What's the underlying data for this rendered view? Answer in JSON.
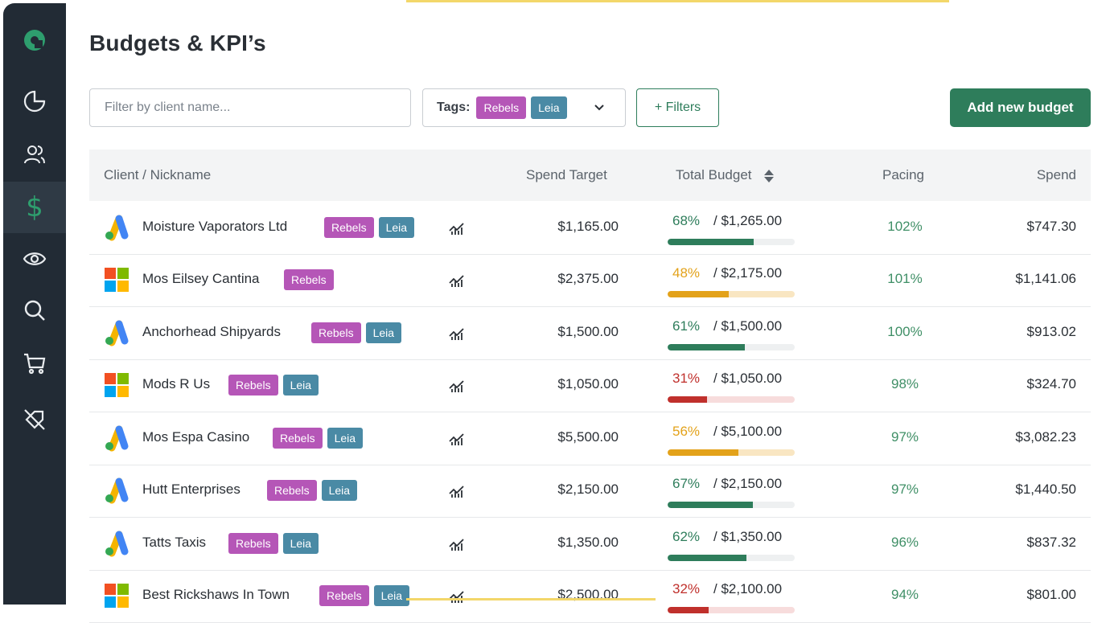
{
  "page": {
    "title": "Budgets & KPI’s"
  },
  "toolbar": {
    "search_placeholder": "Filter by client name...",
    "tags_label": "Tags:",
    "tags_selected": [
      "Rebels",
      "Leia"
    ],
    "filters_label": "+ Filters",
    "add_label": "Add new budget"
  },
  "sidebar": {
    "items": [
      {
        "icon": "logo-icon"
      },
      {
        "icon": "pie-chart-icon"
      },
      {
        "icon": "users-icon"
      },
      {
        "icon": "dollar-icon",
        "glyph": "$",
        "active": true
      },
      {
        "icon": "eye-icon"
      },
      {
        "icon": "search-icon"
      },
      {
        "icon": "cart-icon"
      },
      {
        "icon": "tag-off-icon"
      }
    ]
  },
  "table": {
    "headers": {
      "client": "Client / Nickname",
      "target": "Spend Target",
      "total": "Total Budget",
      "pacing": "Pacing",
      "spend": "Spend"
    },
    "rows": [
      {
        "logo": "google-ads",
        "name": "Moisture Vaporators  Ltd",
        "tags": [
          "Rebels",
          "Leia"
        ],
        "target": "$1,165.00",
        "pct": "68%",
        "pct_value": 68,
        "status": "green",
        "total": "/ $1,265.00",
        "pacing": "102%",
        "spend": "$747.30"
      },
      {
        "logo": "microsoft",
        "name": "Mos Eilsey Cantina",
        "tags": [
          "Rebels"
        ],
        "target": "$2,375.00",
        "pct": "48%",
        "pct_value": 48,
        "status": "orange",
        "total": "/ $2,175.00",
        "pacing": "101%",
        "spend": "$1,141.06"
      },
      {
        "logo": "google-ads",
        "name": "Anchorhead Shipyards",
        "tags": [
          "Rebels",
          "Leia"
        ],
        "target": "$1,500.00",
        "pct": "61%",
        "pct_value": 61,
        "status": "green",
        "total": "/ $1,500.00",
        "pacing": "100%",
        "spend": "$913.02"
      },
      {
        "logo": "microsoft",
        "name": "Mods R Us",
        "tags": [
          "Rebels",
          "Leia"
        ],
        "target": "$1,050.00",
        "pct": "31%",
        "pct_value": 31,
        "status": "red",
        "total": "/ $1,050.00",
        "pacing": "98%",
        "spend": "$324.70"
      },
      {
        "logo": "google-ads",
        "name": "Mos Espa Casino",
        "tags": [
          "Rebels",
          "Leia"
        ],
        "target": "$5,500.00",
        "pct": "56%",
        "pct_value": 56,
        "status": "orange",
        "total": "/ $5,100.00",
        "pacing": "97%",
        "spend": "$3,082.23"
      },
      {
        "logo": "google-ads",
        "name": "Hutt Enterprises",
        "tags": [
          "Rebels",
          "Leia"
        ],
        "target": "$2,150.00",
        "pct": "67%",
        "pct_value": 67,
        "status": "green",
        "total": "/ $2,150.00",
        "pacing": "97%",
        "spend": "$1,440.50"
      },
      {
        "logo": "google-ads",
        "name": "Tatts Taxis",
        "tags": [
          "Rebels",
          "Leia"
        ],
        "target": "$1,350.00",
        "pct": "62%",
        "pct_value": 62,
        "status": "green",
        "total": "/ $1,350.00",
        "pacing": "96%",
        "spend": "$837.32"
      },
      {
        "logo": "microsoft",
        "name": "Best Rickshaws In Town",
        "tags": [
          "Rebels",
          "Leia"
        ],
        "target": "$2,500.00",
        "pct": "32%",
        "pct_value": 32,
        "status": "red",
        "total": "/ $2,100.00",
        "pacing": "94%",
        "spend": "$801.00"
      }
    ]
  },
  "colors": {
    "sidebar": "#222b35",
    "accent": "#2e7d5b",
    "green": "#2e7d5b",
    "orange": "#e3a21a",
    "red": "#c0302c",
    "rebels": "#b556b7",
    "leia": "#4a8aa5"
  }
}
